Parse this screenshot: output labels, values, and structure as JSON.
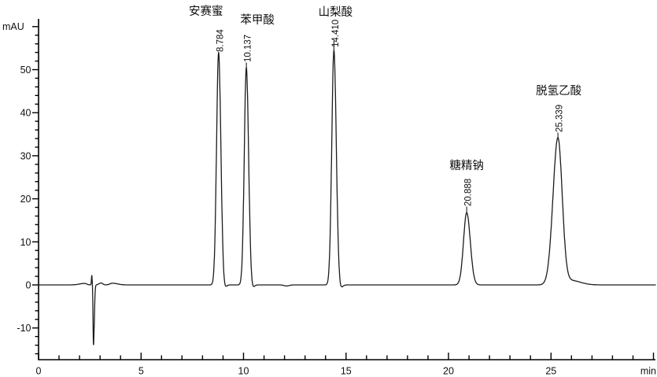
{
  "chart_data": {
    "type": "line",
    "title": "",
    "xlabel": "min",
    "ylabel": "mAU",
    "xlim": [
      0,
      30.1
    ],
    "ylim": [
      -17.5,
      62
    ],
    "grid": false,
    "background_color": "#ffffff",
    "line_color": "#1c1c1c",
    "baseline_mAU": 0,
    "y_axis": {
      "unit_label": "mAU",
      "major_tick_step": 10,
      "minor_tick_step": 2,
      "ticks": [
        {
          "value": 50,
          "label": "50"
        },
        {
          "value": 40,
          "label": "40"
        },
        {
          "value": 30,
          "label": "30"
        },
        {
          "value": 20,
          "label": "20"
        },
        {
          "value": 10,
          "label": "10"
        },
        {
          "value": 0,
          "label": "0"
        },
        {
          "value": -10,
          "label": "-10"
        }
      ]
    },
    "x_axis": {
      "unit_label": "min",
      "major_tick_step": 5,
      "minor_tick_step": 1,
      "ticks": [
        {
          "value": 0,
          "label": "0"
        },
        {
          "value": 5,
          "label": "5"
        },
        {
          "value": 10,
          "label": "10"
        },
        {
          "value": 15,
          "label": "15"
        },
        {
          "value": 20,
          "label": "20"
        },
        {
          "value": 25,
          "label": "25"
        }
      ]
    },
    "peaks": [
      {
        "name": "安赛蜜",
        "rt_label": "8.784",
        "retention_time_min": 8.784,
        "height_mAU": 54.0
      },
      {
        "name": "苯甲酸",
        "rt_label": "10.137",
        "retention_time_min": 10.137,
        "height_mAU": 50.5
      },
      {
        "name": "山梨酸",
        "rt_label": "14.410",
        "retention_time_min": 14.41,
        "height_mAU": 54.5
      },
      {
        "name": "糖精钠",
        "rt_label": "20.888",
        "retention_time_min": 20.888,
        "height_mAU": 16.8
      },
      {
        "name": "脱氢乙酸",
        "rt_label": "25.339",
        "retention_time_min": 25.339,
        "height_mAU": 34.2
      }
    ],
    "injection_disturbance": {
      "time_min": 2.68,
      "spike_mAU": 2.2,
      "dip_mAU": -13.9
    }
  }
}
